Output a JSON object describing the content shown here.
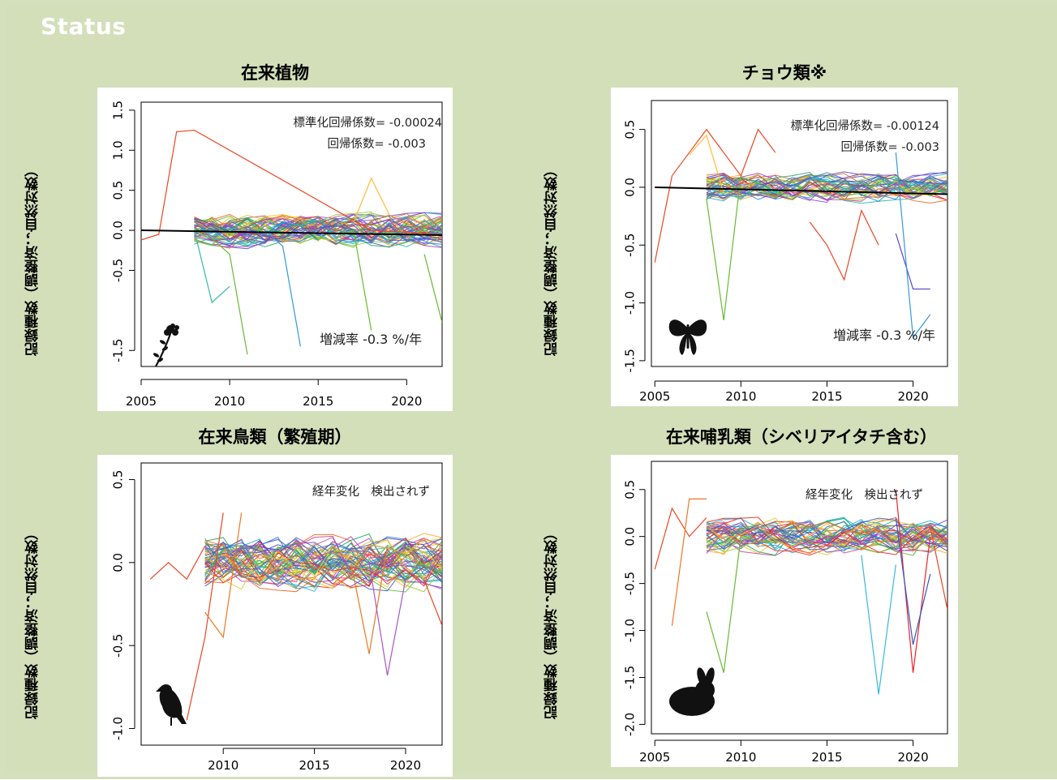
{
  "header": {
    "status_label": "Status"
  },
  "colors": {
    "background": "#d3e0bb",
    "plot_bg": "#ffffff",
    "trend": "#000000"
  },
  "ylabel": "記録種数（調整済；自然対数）",
  "chart_data": [
    {
      "type": "line",
      "title": "在来植物",
      "icon": "plant-icon",
      "ylabel": "記録種数（調整済；自然対数）",
      "xlim": [
        2005,
        2022
      ],
      "ylim": [
        -1.7,
        1.6
      ],
      "x_ticks": [
        2005,
        2010,
        2015,
        2020
      ],
      "y_ticks": [
        -1.5,
        -0.5,
        0.0,
        0.5,
        1.0,
        1.5
      ],
      "y_tick_labels": [
        "-1.5",
        "-0.5",
        "0.0",
        "0.5",
        "1.0",
        "1.5"
      ],
      "series_start": 2008,
      "series_count": 55,
      "spread": 0.15,
      "trend": {
        "x": [
          2005,
          2022
        ],
        "y": [
          0.0,
          -0.06
        ]
      },
      "annotations": [
        "標準化回帰係数= -0.00024",
        "回帰係数= -0.003",
        "増減率 -0.3 %/年"
      ],
      "highlights": [
        {
          "x": [
            2005,
            2006,
            2007,
            2008,
            2018,
            2022
          ],
          "y": [
            -0.12,
            -0.05,
            1.23,
            1.25,
            0.0,
            -0.05
          ],
          "color": "#ee4422"
        },
        {
          "x": [
            2008,
            2009,
            2010
          ],
          "y": [
            0.0,
            -0.9,
            -0.7
          ],
          "color": "#33bbaa"
        },
        {
          "x": [
            2009,
            2010,
            2011
          ],
          "y": [
            -0.1,
            -0.3,
            -1.55
          ],
          "color": "#66bb33"
        },
        {
          "x": [
            2012,
            2013,
            2014
          ],
          "y": [
            0.0,
            -0.2,
            -1.45
          ],
          "color": "#3399dd"
        },
        {
          "x": [
            2016,
            2017,
            2018
          ],
          "y": [
            -0.1,
            0.0,
            -1.25
          ],
          "color": "#66bb33"
        },
        {
          "x": [
            2017,
            2018,
            2019
          ],
          "y": [
            0.1,
            0.65,
            0.2
          ],
          "color": "#ffbb33"
        },
        {
          "x": [
            2021,
            2022
          ],
          "y": [
            -0.3,
            -1.15
          ],
          "color": "#66bb33"
        }
      ]
    },
    {
      "type": "line",
      "title": "チョウ類※",
      "icon": "butterfly-icon",
      "ylabel": "記録種数（調整済；自然対数）",
      "xlim": [
        2004.8,
        2022
      ],
      "ylim": [
        -1.55,
        0.75
      ],
      "x_ticks": [
        2005,
        2010,
        2015,
        2020
      ],
      "y_ticks": [
        -1.5,
        -1.0,
        -0.5,
        0.0,
        0.5
      ],
      "y_tick_labels": [
        "-1.5",
        "-1.0",
        "-0.5",
        "0.0",
        "0.5"
      ],
      "series_start": 2008,
      "series_count": 40,
      "spread": 0.09,
      "trend": {
        "x": [
          2005,
          2022
        ],
        "y": [
          0.0,
          -0.06
        ]
      },
      "annotations": [
        "標準化回帰係数= -0.00124",
        "回帰係数= -0.003",
        "増減率 -0.3 %/年"
      ],
      "highlights": [
        {
          "x": [
            2005,
            2006,
            2007,
            2008,
            2009,
            2010,
            2011,
            2012
          ],
          "y": [
            -0.65,
            0.1,
            0.3,
            0.5,
            0.3,
            0.1,
            0.5,
            0.3
          ],
          "color": "#ee4422"
        },
        {
          "x": [
            2007,
            2008,
            2009
          ],
          "y": [
            0.28,
            0.45,
            -0.05
          ],
          "color": "#ffbb33"
        },
        {
          "x": [
            2008,
            2009,
            2010
          ],
          "y": [
            -0.1,
            -1.15,
            0.1
          ],
          "color": "#66bb33"
        },
        {
          "x": [
            2014,
            2015,
            2016,
            2017,
            2018
          ],
          "y": [
            -0.3,
            -0.5,
            -0.8,
            -0.2,
            -0.5
          ],
          "color": "#ee4422"
        },
        {
          "x": [
            2019,
            2020,
            2021
          ],
          "y": [
            -0.4,
            -0.88,
            -0.88
          ],
          "color": "#5544cc"
        },
        {
          "x": [
            2019,
            2020,
            2021
          ],
          "y": [
            0.3,
            -1.3,
            -1.1
          ],
          "color": "#3399dd"
        }
      ]
    },
    {
      "type": "line",
      "title": "在来鳥類（繁殖期）",
      "icon": "bird-icon",
      "ylabel": "記録種数（調整済；自然対数）",
      "xlim": [
        2005.5,
        2022
      ],
      "ylim": [
        -1.1,
        0.6
      ],
      "x_ticks": [
        2010,
        2015,
        2020
      ],
      "y_ticks": [
        -1.0,
        -0.5,
        0.0,
        0.5
      ],
      "y_tick_labels": [
        "-1.0",
        "-0.5",
        "0.0",
        "0.5"
      ],
      "series_start": 2009,
      "series_count": 60,
      "spread": 0.12,
      "trend": null,
      "annotations": [
        "経年変化　検出されず"
      ],
      "highlights": [
        {
          "x": [
            2006,
            2007,
            2008,
            2009
          ],
          "y": [
            -0.1,
            0.0,
            -0.1,
            0.1
          ],
          "color": "#ee4422"
        },
        {
          "x": [
            2008,
            2009,
            2010
          ],
          "y": [
            -0.95,
            -0.45,
            0.3
          ],
          "color": "#ee4422"
        },
        {
          "x": [
            2009,
            2010,
            2011
          ],
          "y": [
            -0.3,
            -0.45,
            0.3
          ],
          "color": "#ee7722"
        },
        {
          "x": [
            2017,
            2018,
            2019
          ],
          "y": [
            0.0,
            -0.55,
            0.1
          ],
          "color": "#ee7722"
        },
        {
          "x": [
            2018,
            2019,
            2020
          ],
          "y": [
            0.0,
            -0.68,
            -0.1
          ],
          "color": "#aa55cc"
        },
        {
          "x": [
            2021,
            2022
          ],
          "y": [
            -0.1,
            -0.38
          ],
          "color": "#ee4422"
        }
      ]
    },
    {
      "type": "line",
      "title": "在来哺乳類（シベリアイタチ含む）",
      "icon": "rabbit-icon",
      "ylabel": "記録種数（調整済；自然対数）",
      "xlim": [
        2004.8,
        2022
      ],
      "ylim": [
        -2.1,
        0.8
      ],
      "x_ticks": [
        2005,
        2010,
        2015,
        2020
      ],
      "y_ticks": [
        -2.0,
        -1.5,
        -1.0,
        -0.5,
        0.0,
        0.5
      ],
      "y_tick_labels": [
        "-2.0",
        "-1.5",
        "-1.0",
        "-0.5",
        "0.0",
        "0.5"
      ],
      "series_start": 2008,
      "series_count": 45,
      "spread": 0.14,
      "trend": null,
      "annotations": [
        "経年変化　検出されず"
      ],
      "highlights": [
        {
          "x": [
            2005,
            2006,
            2007,
            2008
          ],
          "y": [
            -0.35,
            0.3,
            0.0,
            0.2
          ],
          "color": "#ee4422"
        },
        {
          "x": [
            2006,
            2007,
            2008
          ],
          "y": [
            -0.95,
            0.4,
            0.4
          ],
          "color": "#ee7722"
        },
        {
          "x": [
            2008,
            2009,
            2010
          ],
          "y": [
            -0.8,
            -1.45,
            0.0
          ],
          "color": "#66bb33"
        },
        {
          "x": [
            2017,
            2018,
            2019
          ],
          "y": [
            -0.2,
            -1.68,
            -0.3
          ],
          "color": "#33bbdd"
        },
        {
          "x": [
            2019,
            2020,
            2021
          ],
          "y": [
            0.5,
            -1.45,
            0.0
          ],
          "color": "#ee2222"
        },
        {
          "x": [
            2019,
            2020,
            2021
          ],
          "y": [
            0.2,
            -1.15,
            -0.4
          ],
          "color": "#3355cc"
        },
        {
          "x": [
            2021,
            2022
          ],
          "y": [
            0.1,
            -0.78
          ],
          "color": "#ee4422"
        }
      ]
    }
  ]
}
